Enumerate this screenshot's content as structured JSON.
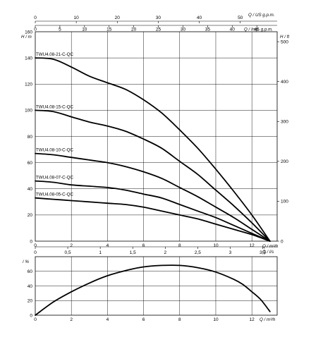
{
  "chart_data": [
    {
      "type": "line",
      "axes": {
        "q_m3h": {
          "label": "Q / m³/h",
          "range": [
            0,
            13.4
          ],
          "ticks": [
            "0",
            "2",
            "4",
            "6",
            "8",
            "10",
            "12"
          ]
        },
        "q_usgpm": {
          "label": "Q / US g.p.m.",
          "ticks": [
            "0",
            "10",
            "20",
            "30",
            "40",
            "50"
          ]
        },
        "q_impgpm": {
          "label": "Q / Imp. g.p.m.",
          "ticks": [
            "0",
            "5",
            "10",
            "15",
            "20",
            "25",
            "30",
            "35",
            "40",
            "45"
          ]
        },
        "q_ls": {
          "label": "Q / l/s",
          "ticks": [
            "0",
            "0,5",
            "1",
            "1,5",
            "2",
            "2,5",
            "3",
            "3,5"
          ]
        },
        "h_m": {
          "label": "H / m",
          "range": [
            0,
            160
          ],
          "ticks": [
            "0",
            "20",
            "40",
            "60",
            "80",
            "100",
            "120",
            "140",
            "160"
          ]
        },
        "h_ft": {
          "label": "H / ft",
          "ticks": [
            "0",
            "100",
            "200",
            "300",
            "400",
            "500"
          ]
        }
      },
      "grid": true,
      "series": [
        {
          "name": "TWU4.08-21-C-QC",
          "x": [
            0,
            1,
            2,
            3,
            4,
            5,
            6,
            7,
            8,
            9,
            10,
            11,
            12,
            13
          ],
          "y": [
            140,
            139,
            133,
            126,
            121,
            116,
            108,
            98,
            85,
            71,
            55,
            38,
            20,
            0
          ]
        },
        {
          "name": "TWU4.08-15-C-QC",
          "x": [
            0,
            1,
            2,
            3,
            4,
            5,
            6,
            7,
            8,
            9,
            10,
            11,
            12,
            13
          ],
          "y": [
            100,
            99,
            95,
            91,
            88,
            84,
            78,
            71,
            61,
            51,
            39,
            27,
            14,
            0
          ]
        },
        {
          "name": "TWU4.08-10-C-QC",
          "x": [
            0,
            1,
            2,
            3,
            4,
            5,
            6,
            7,
            8,
            9,
            10,
            11,
            12,
            13
          ],
          "y": [
            67,
            66,
            64,
            62,
            60,
            57,
            53,
            48,
            41,
            34,
            26,
            18,
            9,
            0
          ]
        },
        {
          "name": "TWU4.08-07-C-QC",
          "x": [
            0,
            1,
            2,
            3,
            4,
            5,
            6,
            7,
            8,
            9,
            10,
            11,
            12,
            13
          ],
          "y": [
            46,
            45,
            43,
            42,
            41,
            39,
            36,
            33,
            28,
            23,
            18,
            12,
            6,
            0
          ]
        },
        {
          "name": "TWU4.08-05-C-QC",
          "x": [
            0,
            1,
            2,
            3,
            4,
            5,
            6,
            7,
            8,
            9,
            10,
            11,
            12,
            13
          ],
          "y": [
            33,
            32,
            31,
            30,
            29,
            28,
            26,
            23,
            20,
            17,
            13,
            9,
            5,
            0
          ]
        }
      ]
    },
    {
      "type": "line",
      "axes": {
        "q_m3h": {
          "label": "Q / m³/h",
          "range": [
            0,
            13.4
          ],
          "ticks": [
            "0",
            "2",
            "4",
            "6",
            "8",
            "10",
            "12"
          ]
        },
        "eff": {
          "label": "/ %",
          "range": [
            0,
            80
          ],
          "ticks": [
            "0",
            "20",
            "40",
            "60"
          ]
        }
      },
      "grid": true,
      "series": [
        {
          "x": [
            0,
            1,
            2,
            3,
            4,
            5,
            6,
            7,
            8,
            9,
            10,
            11,
            11.5,
            12,
            12.5,
            13
          ],
          "y": [
            0,
            18,
            32,
            44,
            54,
            61,
            66,
            68,
            68,
            65,
            59,
            49,
            42,
            32,
            21,
            5
          ]
        }
      ]
    }
  ]
}
